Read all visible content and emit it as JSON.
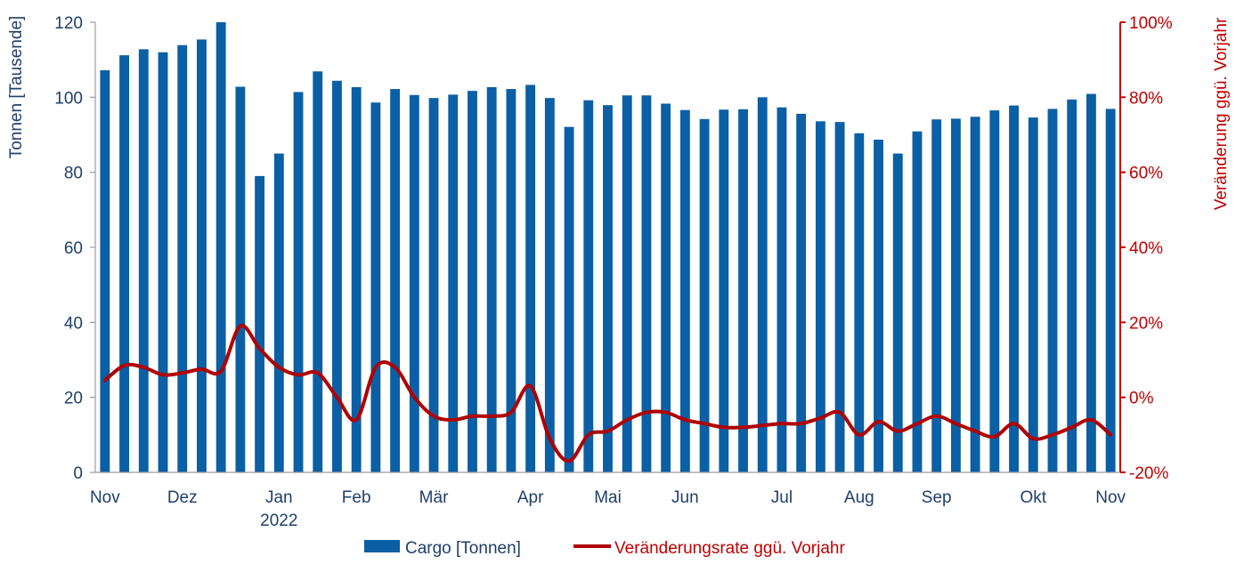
{
  "chart_data": {
    "type": "bar+line",
    "title": "",
    "ylabel_left": "Tonnen [Tausende]",
    "ylabel_right": "Veränderung ggü. Vorjahr",
    "ylim_left": [
      0,
      120
    ],
    "ylim_right": [
      -20,
      100
    ],
    "yticks_left": [
      "0",
      "20",
      "40",
      "60",
      "80",
      "100",
      "120"
    ],
    "yticks_right": [
      "-20%",
      "0%",
      "20%",
      "40%",
      "60%",
      "80%",
      "100%"
    ],
    "x_ticks": [
      {
        "label": "Nov",
        "index": 0
      },
      {
        "label": "Dez",
        "index": 4
      },
      {
        "label": "Jan",
        "index": 9,
        "sub": "2022"
      },
      {
        "label": "Feb",
        "index": 13
      },
      {
        "label": "Mär",
        "index": 17
      },
      {
        "label": "Apr",
        "index": 22
      },
      {
        "label": "Mai",
        "index": 26
      },
      {
        "label": "Jun",
        "index": 30
      },
      {
        "label": "Jul",
        "index": 35
      },
      {
        "label": "Aug",
        "index": 39
      },
      {
        "label": "Sep",
        "index": 43
      },
      {
        "label": "Okt",
        "index": 48
      },
      {
        "label": "Nov",
        "index": 52
      }
    ],
    "series": [
      {
        "name": "Cargo [Tonnen]",
        "type": "bar",
        "color": "#0b5fa5",
        "values": [
          107.2,
          111.2,
          112.8,
          112.0,
          113.9,
          115.4,
          120.0,
          102.8,
          79.0,
          85.0,
          101.4,
          106.9,
          104.4,
          102.7,
          98.6,
          102.2,
          100.6,
          99.8,
          100.7,
          101.7,
          102.7,
          102.2,
          103.3,
          99.8,
          92.1,
          99.2,
          97.9,
          100.5,
          100.5,
          98.3,
          96.6,
          94.2,
          96.7,
          96.8,
          100.0,
          97.3,
          95.6,
          93.6,
          93.4,
          90.4,
          88.7,
          85.0,
          90.9,
          94.1,
          94.3,
          94.8,
          96.5,
          97.8,
          94.6,
          96.9,
          99.4,
          100.9,
          96.9
        ]
      },
      {
        "name": "Veränderungsrate ggü. Vorjahr",
        "type": "line",
        "color": "#b00000",
        "values": [
          4.5,
          8.5,
          8,
          6,
          6.5,
          7.5,
          7,
          19,
          13,
          8,
          6,
          6.5,
          0,
          -6,
          8,
          8,
          0,
          -5,
          -6,
          -5,
          -5,
          -4,
          3,
          -11,
          -17,
          -10,
          -9,
          -6,
          -4,
          -4,
          -6,
          -7,
          -8,
          -8,
          -7.5,
          -7,
          -7,
          -5.5,
          -4,
          -10,
          -6.5,
          -9,
          -7,
          -5,
          -7,
          -9,
          -10.5,
          -7,
          -11,
          -10,
          -8,
          -6,
          -10
        ]
      }
    ],
    "legend": [
      {
        "label": "Cargo [Tonnen]",
        "kind": "bar"
      },
      {
        "label": "Veränderungsrate ggü. Vorjahr",
        "kind": "line"
      }
    ],
    "legend_position": "bottom-center"
  }
}
